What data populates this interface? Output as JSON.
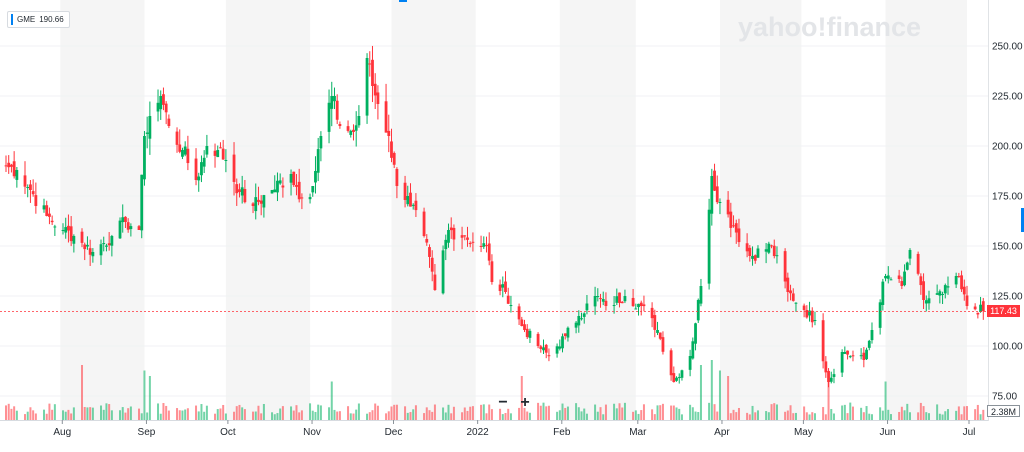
{
  "watermark": "yahoo!finance",
  "legend": {
    "symbol": "GME",
    "value": "190.66",
    "color": "#0081f2"
  },
  "last_price_label": "117.43",
  "volume_label": "2.38M",
  "zoom": {
    "minus": "−",
    "plus": "+"
  },
  "colors": {
    "up": "#00b060",
    "down": "#ff333a",
    "band": "#f5f5f5",
    "grid": "#f0f2f4"
  },
  "chart_data": {
    "type": "candlestick",
    "symbol": "GME",
    "x_tick_labels": [
      "Aug",
      "Sep",
      "Oct",
      "Nov",
      "Dec",
      "2022",
      "Feb",
      "Mar",
      "Apr",
      "May",
      "Jun",
      "Jul"
    ],
    "y_tick_labels": [
      "75.00",
      "100.00",
      "125.00",
      "150.00",
      "175.00",
      "200.00",
      "225.00",
      "250.00"
    ],
    "ylim": [
      68,
      268
    ],
    "last_price": 117.43,
    "last_volume": "2.38M",
    "grid": true,
    "anchors": [
      [
        "2021-07-12",
        190
      ],
      [
        "2021-07-16",
        188
      ],
      [
        "2021-07-21",
        178
      ],
      [
        "2021-07-27",
        165
      ],
      [
        "2021-08-02",
        158
      ],
      [
        "2021-08-06",
        155
      ],
      [
        "2021-08-13",
        147
      ],
      [
        "2021-08-20",
        155
      ],
      [
        "2021-08-25",
        162
      ],
      [
        "2021-08-30",
        158
      ],
      [
        "2021-09-01",
        205
      ],
      [
        "2021-09-03",
        215
      ],
      [
        "2021-09-07",
        225
      ],
      [
        "2021-09-10",
        210
      ],
      [
        "2021-09-15",
        198
      ],
      [
        "2021-09-20",
        183
      ],
      [
        "2021-09-24",
        200
      ],
      [
        "2021-09-28",
        198
      ],
      [
        "2021-10-01",
        193
      ],
      [
        "2021-10-06",
        177
      ],
      [
        "2021-10-11",
        170
      ],
      [
        "2021-10-18",
        178
      ],
      [
        "2021-10-25",
        186
      ],
      [
        "2021-10-29",
        174
      ],
      [
        "2021-11-02",
        180
      ],
      [
        "2021-11-05",
        205
      ],
      [
        "2021-11-09",
        225
      ],
      [
        "2021-11-12",
        210
      ],
      [
        "2021-11-17",
        207
      ],
      [
        "2021-11-19",
        215
      ],
      [
        "2021-11-22",
        244
      ],
      [
        "2021-11-24",
        230
      ],
      [
        "2021-11-30",
        205
      ],
      [
        "2021-12-03",
        180
      ],
      [
        "2021-12-07",
        175
      ],
      [
        "2021-12-13",
        155
      ],
      [
        "2021-12-17",
        128
      ],
      [
        "2021-12-22",
        158
      ],
      [
        "2021-12-28",
        155
      ],
      [
        "2022-01-03",
        150
      ],
      [
        "2022-01-05",
        150
      ],
      [
        "2022-01-07",
        132
      ],
      [
        "2022-01-12",
        127
      ],
      [
        "2022-01-18",
        110
      ],
      [
        "2022-01-24",
        100
      ],
      [
        "2022-01-28",
        95
      ],
      [
        "2022-02-03",
        105
      ],
      [
        "2022-02-08",
        115
      ],
      [
        "2022-02-14",
        125
      ],
      [
        "2022-02-18",
        120
      ],
      [
        "2022-02-25",
        125
      ],
      [
        "2022-03-03",
        120
      ],
      [
        "2022-03-09",
        108
      ],
      [
        "2022-03-15",
        82
      ],
      [
        "2022-03-21",
        95
      ],
      [
        "2022-03-25",
        130
      ],
      [
        "2022-03-29",
        185
      ],
      [
        "2022-04-01",
        172
      ],
      [
        "2022-04-06",
        160
      ],
      [
        "2022-04-12",
        145
      ],
      [
        "2022-04-20",
        150
      ],
      [
        "2022-04-26",
        127
      ],
      [
        "2022-05-02",
        118
      ],
      [
        "2022-05-06",
        113
      ],
      [
        "2022-05-11",
        82
      ],
      [
        "2022-05-16",
        97
      ],
      [
        "2022-05-24",
        93
      ],
      [
        "2022-05-27",
        108
      ],
      [
        "2022-06-01",
        135
      ],
      [
        "2022-06-07",
        130
      ],
      [
        "2022-06-10",
        148
      ],
      [
        "2022-06-15",
        123
      ],
      [
        "2022-06-22",
        126
      ],
      [
        "2022-06-27",
        135
      ],
      [
        "2022-07-01",
        120
      ],
      [
        "2022-07-07",
        117.43
      ]
    ],
    "volume_spikes": [
      [
        "2021-08-09",
        10
      ],
      [
        "2021-09-01",
        9
      ],
      [
        "2021-09-03",
        8
      ],
      [
        "2021-11-09",
        7
      ],
      [
        "2022-01-18",
        8
      ],
      [
        "2022-03-25",
        10
      ],
      [
        "2022-03-29",
        11
      ],
      [
        "2022-04-01",
        9
      ],
      [
        "2022-04-04",
        8
      ],
      [
        "2022-05-11",
        7
      ],
      [
        "2022-06-01",
        7
      ]
    ]
  }
}
